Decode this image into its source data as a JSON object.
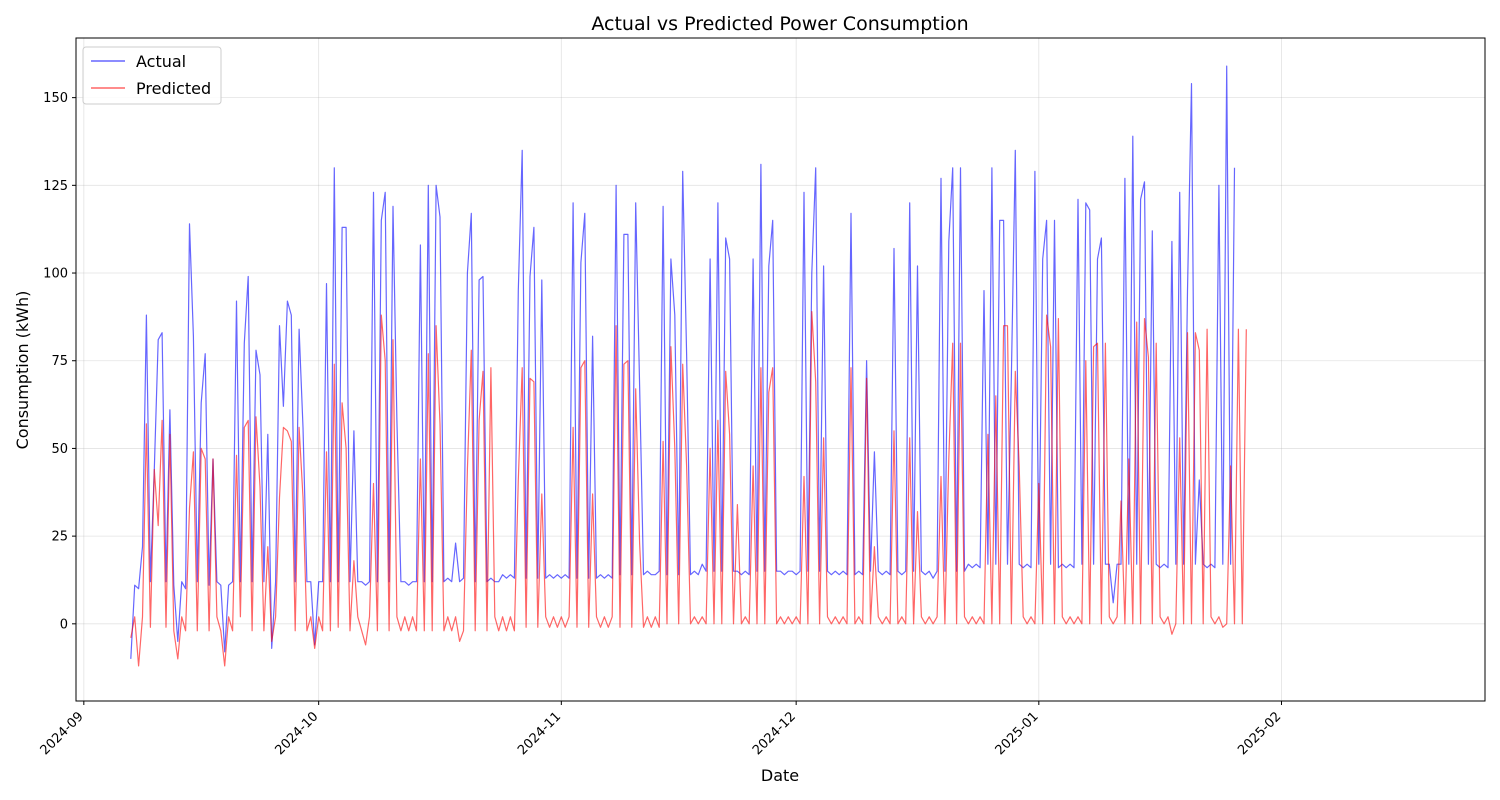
{
  "chart_data": {
    "type": "line",
    "title": "Actual vs Predicted Power Consumption",
    "xlabel": "Date",
    "ylabel": "Consumption (kWh)",
    "xlim": [
      "2024-08-31",
      "2025-02-27"
    ],
    "ylim": [
      -22,
      167
    ],
    "x_ticks": [
      "2024-09-01",
      "2024-10-01",
      "2024-11-01",
      "2024-12-01",
      "2025-01-01",
      "2025-02-01"
    ],
    "x_tick_labels": [
      "2024-09",
      "2024-10",
      "2024-11",
      "2024-12",
      "2025-01",
      "2025-02"
    ],
    "y_ticks": [
      0,
      25,
      50,
      75,
      100,
      125,
      150
    ],
    "grid": true,
    "legend_position": "top-left",
    "legend": [
      "Actual",
      "Predicted"
    ],
    "x_start": "2024-09-07",
    "x_step_days": 0.5,
    "series": [
      {
        "name": "Actual",
        "color": "#0000ff",
        "values": [
          -10,
          11,
          10,
          22,
          88,
          12,
          44,
          81,
          83,
          12,
          61,
          11,
          -5,
          12,
          10,
          114,
          82,
          12,
          63,
          77,
          11,
          47,
          12,
          11,
          -8,
          11,
          12,
          92,
          12,
          80,
          99,
          12,
          78,
          71,
          12,
          54,
          -7,
          12,
          85,
          62,
          92,
          88,
          12,
          84,
          56,
          12,
          12,
          -6,
          12,
          12,
          97,
          12,
          130,
          12,
          113,
          113,
          12,
          55,
          12,
          12,
          11,
          12,
          123,
          12,
          115,
          123,
          12,
          119,
          58,
          12,
          12,
          11,
          12,
          12,
          108,
          12,
          125,
          12,
          125,
          116,
          12,
          13,
          12,
          23,
          12,
          13,
          100,
          117,
          12,
          98,
          99,
          12,
          13,
          12,
          12,
          14,
          13,
          14,
          13,
          95,
          135,
          13,
          99,
          113,
          13,
          98,
          13,
          14,
          13,
          14,
          13,
          14,
          13,
          120,
          13,
          103,
          117,
          13,
          82,
          13,
          14,
          13,
          14,
          13,
          125,
          14,
          111,
          111,
          14,
          120,
          68,
          14,
          15,
          14,
          14,
          15,
          119,
          14,
          104,
          88,
          14,
          129,
          77,
          14,
          15,
          14,
          17,
          15,
          104,
          15,
          120,
          15,
          110,
          104,
          15,
          15,
          14,
          15,
          14,
          104,
          15,
          131,
          15,
          102,
          115,
          15,
          15,
          14,
          15,
          15,
          14,
          15,
          123,
          15,
          100,
          130,
          15,
          102,
          15,
          14,
          15,
          14,
          15,
          14,
          117,
          14,
          15,
          14,
          75,
          15,
          49,
          15,
          14,
          15,
          14,
          107,
          15,
          14,
          15,
          120,
          15,
          102,
          15,
          14,
          15,
          13,
          15,
          127,
          15,
          109,
          130,
          15,
          130,
          15,
          17,
          16,
          17,
          16,
          95,
          17,
          130,
          17,
          115,
          115,
          17,
          71,
          135,
          17,
          16,
          17,
          16,
          129,
          17,
          104,
          115,
          17,
          115,
          16,
          17,
          16,
          17,
          16,
          121,
          17,
          120,
          118,
          17,
          104,
          110,
          17,
          17,
          6,
          17,
          17,
          127,
          17,
          139,
          17,
          121,
          126,
          17,
          112,
          17,
          16,
          17,
          16,
          109,
          17,
          123,
          17,
          95,
          154,
          17,
          41,
          17,
          16,
          17,
          16,
          125,
          17,
          159,
          17,
          130
        ]
      },
      {
        "name": "Predicted",
        "color": "#ff0000",
        "values": [
          -4,
          2,
          -12,
          2,
          57,
          -1,
          44,
          28,
          58,
          -1,
          54,
          -2,
          -10,
          2,
          -2,
          33,
          49,
          -2,
          50,
          47,
          -2,
          47,
          2,
          -2,
          -12,
          2,
          -2,
          48,
          2,
          56,
          58,
          -2,
          59,
          39,
          -2,
          22,
          -5,
          2,
          36,
          56,
          55,
          52,
          -2,
          56,
          36,
          -2,
          2,
          -7,
          2,
          -2,
          49,
          -2,
          74,
          -1,
          63,
          50,
          -2,
          18,
          2,
          -2,
          -6,
          2,
          40,
          -2,
          88,
          75,
          -2,
          81,
          2,
          -2,
          2,
          -2,
          2,
          -2,
          47,
          -2,
          77,
          -2,
          85,
          57,
          -2,
          2,
          -2,
          2,
          -5,
          -2,
          44,
          78,
          -2,
          58,
          72,
          -2,
          73,
          2,
          -2,
          2,
          -2,
          2,
          -2,
          41,
          73,
          -1,
          70,
          69,
          -1,
          37,
          2,
          -1,
          2,
          -1,
          2,
          -1,
          2,
          56,
          -1,
          73,
          75,
          -1,
          37,
          2,
          -1,
          2,
          -1,
          2,
          85,
          -1,
          74,
          75,
          -1,
          67,
          23,
          -1,
          2,
          -1,
          2,
          -1,
          52,
          0,
          79,
          50,
          0,
          74,
          45,
          0,
          2,
          0,
          2,
          0,
          50,
          0,
          58,
          0,
          72,
          54,
          0,
          34,
          0,
          2,
          0,
          45,
          0,
          73,
          0,
          66,
          73,
          0,
          2,
          0,
          2,
          0,
          2,
          0,
          42,
          0,
          89,
          69,
          0,
          53,
          2,
          0,
          2,
          0,
          2,
          0,
          73,
          0,
          2,
          0,
          70,
          0,
          22,
          2,
          0,
          2,
          0,
          55,
          0,
          2,
          0,
          53,
          0,
          32,
          2,
          0,
          2,
          0,
          2,
          42,
          0,
          47,
          80,
          0,
          80,
          2,
          0,
          2,
          0,
          2,
          0,
          54,
          0,
          65,
          0,
          85,
          85,
          0,
          72,
          45,
          2,
          0,
          2,
          0,
          40,
          0,
          88,
          79,
          0,
          87,
          2,
          0,
          2,
          0,
          2,
          0,
          75,
          0,
          79,
          80,
          0,
          80,
          2,
          0,
          2,
          35,
          0,
          47,
          0,
          86,
          0,
          87,
          76,
          0,
          80,
          2,
          0,
          2,
          -3,
          0,
          53,
          0,
          83,
          0,
          83,
          78,
          0,
          84,
          2,
          0,
          2,
          -1,
          0,
          45,
          0,
          84,
          0,
          84
        ]
      }
    ]
  }
}
